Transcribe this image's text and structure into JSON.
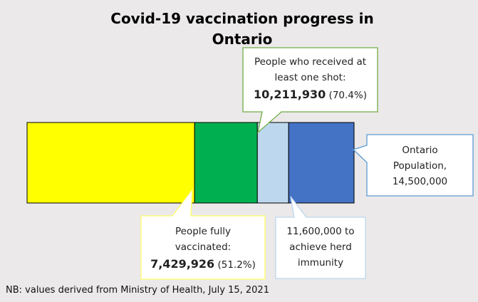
{
  "chart_data": {
    "type": "bar",
    "orientation": "horizontal-stacked-progress",
    "title": "Covid-19 vaccination progress in Ontario",
    "segments": [
      {
        "name": "People fully vaccinated",
        "value": 7429926,
        "color": "#ffff00"
      },
      {
        "name": "People who received at least one shot",
        "value": 10211930,
        "color": "#00b050"
      },
      {
        "name": "11,600,000 to achieve herd immunity",
        "value": 11600000,
        "color": "#bdd7ee"
      },
      {
        "name": "Ontario Population",
        "value": 14500000,
        "color": "#4472c4"
      }
    ],
    "xlim": [
      0,
      14500000
    ],
    "grid": false,
    "legend": "none"
  },
  "labels": {
    "title": "Covid-19 vaccination progress in Ontario",
    "one_shot_line1": "People who received at",
    "one_shot_line2": "least one shot:",
    "one_shot_value": "10,211,930",
    "one_shot_pct": "(70.4%)",
    "population_line1": "Ontario",
    "population_line2": "Population,",
    "population_line3": "14,500,000",
    "fully_line1": "People fully",
    "fully_line2": "vaccinated:",
    "fully_value": "7,429,926",
    "fully_pct": "(51.2%)",
    "herd_line1": "11,600,000 to",
    "herd_line2": "achieve herd",
    "herd_line3": "immunity",
    "footnote": "NB: values derived from Ministry of Health, July 15, 2021"
  }
}
